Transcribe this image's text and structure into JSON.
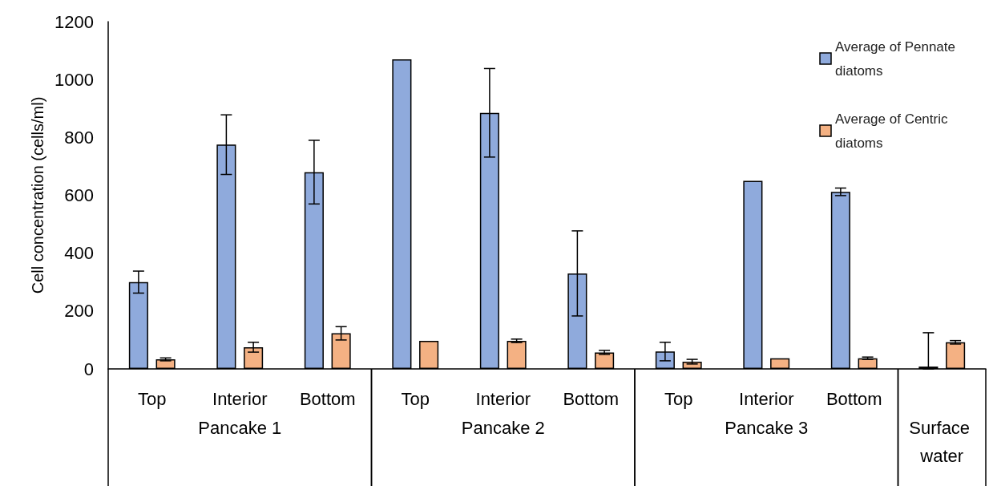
{
  "chart_data": {
    "type": "bar",
    "ylabel": "Cell concentration (cells/ml)",
    "categories": [
      "Top",
      "Interior",
      "Bottom",
      "Top",
      "Interior",
      "Bottom",
      "Top",
      "Interior",
      "Bottom",
      null
    ],
    "annotations": [
      "Pancake 1",
      "Pancake 2",
      "Pancake 3",
      "Surface water"
    ],
    "series": [
      {
        "name": "Average of Pennate diatoms",
        "color": "#8faadc",
        "values": [
          300,
          775,
          680,
          1070,
          885,
          330,
          60,
          650,
          612,
          8
        ],
        "errors": [
          38,
          103,
          110,
          null,
          153,
          147,
          32,
          null,
          13,
          [
            0,
            125
          ]
        ]
      },
      {
        "name": "Average of Centric diatoms",
        "color": "#f4b183",
        "values": [
          33,
          75,
          123,
          97,
          97,
          57,
          25,
          37,
          37,
          92
        ],
        "errors": [
          5,
          17,
          23,
          null,
          6,
          7,
          8,
          null,
          4,
          6
        ]
      }
    ],
    "ylim": [
      0,
      1200
    ],
    "yticks": [
      0,
      200,
      400,
      600,
      800,
      1000,
      1200
    ],
    "grid": false,
    "legend": "top right"
  }
}
